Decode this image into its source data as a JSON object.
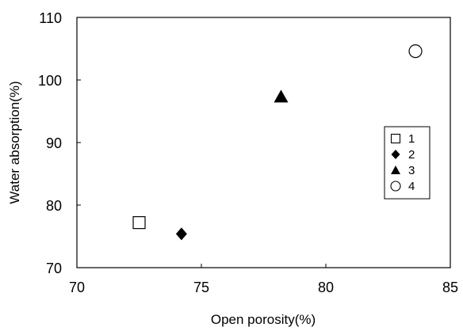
{
  "chart_data": {
    "type": "scatter",
    "title": "",
    "xlabel": "Open porosity(%)",
    "ylabel": "Water absorption(%)",
    "xlim": [
      70,
      85
    ],
    "ylim": [
      70,
      110
    ],
    "xticks": [
      "70",
      "75",
      "80",
      "85"
    ],
    "yticks": [
      "70",
      "80",
      "90",
      "100",
      "110"
    ],
    "grid": false,
    "legend_position": "right",
    "series": [
      {
        "name": "1",
        "marker": "open-square",
        "x": [
          72.5
        ],
        "y": [
          77.2
        ]
      },
      {
        "name": "2",
        "marker": "filled-diamond",
        "x": [
          74.2
        ],
        "y": [
          75.4
        ]
      },
      {
        "name": "3",
        "marker": "filled-triangle",
        "x": [
          78.2
        ],
        "y": [
          97.3
        ]
      },
      {
        "name": "4",
        "marker": "open-circle",
        "x": [
          83.6
        ],
        "y": [
          104.6
        ]
      }
    ]
  }
}
